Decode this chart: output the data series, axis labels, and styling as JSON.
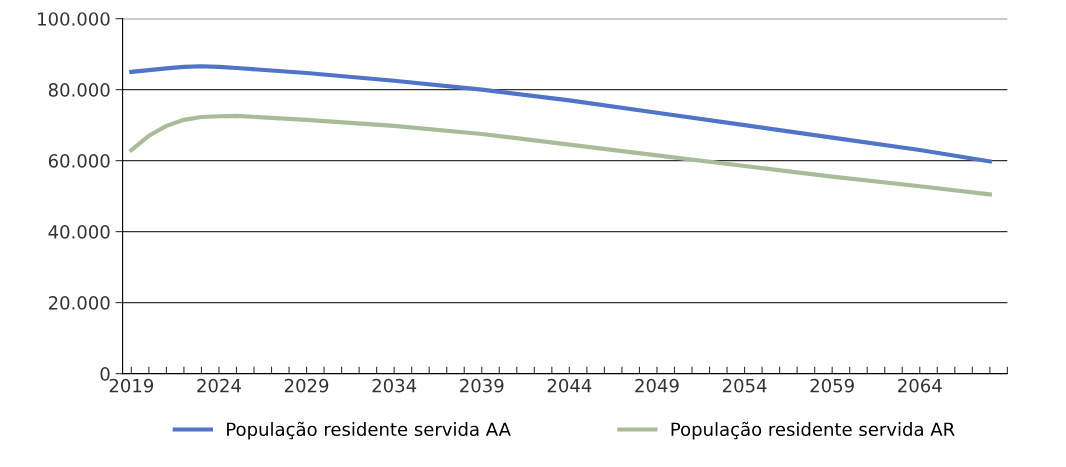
{
  "chart_data": {
    "type": "line",
    "x": [
      2019,
      2020,
      2021,
      2022,
      2023,
      2024,
      2025,
      2029,
      2034,
      2039,
      2044,
      2049,
      2054,
      2059,
      2064,
      2068
    ],
    "series": [
      {
        "name": "População residente servida AA",
        "color": "#4f74c8",
        "values": [
          85000,
          85500,
          86000,
          86400,
          86600,
          86400,
          86100,
          84700,
          82500,
          80000,
          77000,
          73500,
          70000,
          66500,
          63000,
          59800
        ]
      },
      {
        "name": "População residente servida AR",
        "color": "#a9bc9a",
        "values": [
          63000,
          67000,
          69800,
          71500,
          72300,
          72500,
          72600,
          71500,
          69800,
          67500,
          64500,
          61500,
          58500,
          55500,
          52800,
          50500
        ]
      }
    ],
    "xlim": [
      2018.5,
      2069
    ],
    "xticks": [
      2019,
      {
        "value": 2020,
        "label": null
      },
      {
        "value": 2021,
        "label": null
      },
      {
        "value": 2022,
        "label": null
      },
      {
        "value": 2023,
        "label": null
      },
      2024,
      {
        "value": 2025,
        "label": null
      },
      {
        "value": 2026,
        "label": null
      },
      {
        "value": 2027,
        "label": null
      },
      {
        "value": 2028,
        "label": null
      },
      2029,
      {
        "value": 2030,
        "label": null
      },
      {
        "value": 2031,
        "label": null
      },
      {
        "value": 2032,
        "label": null
      },
      {
        "value": 2033,
        "label": null
      },
      2034,
      {
        "value": 2035,
        "label": null
      },
      {
        "value": 2036,
        "label": null
      },
      {
        "value": 2037,
        "label": null
      },
      {
        "value": 2038,
        "label": null
      },
      2039,
      {
        "value": 2040,
        "label": null
      },
      {
        "value": 2041,
        "label": null
      },
      {
        "value": 2042,
        "label": null
      },
      {
        "value": 2043,
        "label": null
      },
      2044,
      {
        "value": 2045,
        "label": null
      },
      {
        "value": 2046,
        "label": null
      },
      {
        "value": 2047,
        "label": null
      },
      {
        "value": 2048,
        "label": null
      },
      2049,
      {
        "value": 2050,
        "label": null
      },
      {
        "value": 2051,
        "label": null
      },
      {
        "value": 2052,
        "label": null
      },
      {
        "value": 2053,
        "label": null
      },
      2054,
      {
        "value": 2055,
        "label": null
      },
      {
        "value": 2056,
        "label": null
      },
      {
        "value": 2057,
        "label": null
      },
      {
        "value": 2058,
        "label": null
      },
      2059,
      {
        "value": 2060,
        "label": null
      },
      {
        "value": 2061,
        "label": null
      },
      {
        "value": 2062,
        "label": null
      },
      {
        "value": 2063,
        "label": null
      },
      2064,
      {
        "value": 2065,
        "label": null
      },
      {
        "value": 2066,
        "label": null
      },
      {
        "value": 2067,
        "label": null
      },
      {
        "value": 2068,
        "label": null
      },
      {
        "value": 2069,
        "label": null
      }
    ],
    "ylim": [
      0,
      100000
    ],
    "yticks": [
      {
        "value": 0,
        "label": "0"
      },
      {
        "value": 20000,
        "label": "20.000"
      },
      {
        "value": 40000,
        "label": "40.000"
      },
      {
        "value": 60000,
        "label": "60.000"
      },
      {
        "value": 80000,
        "label": "80.000"
      },
      {
        "value": 100000,
        "label": "100.000"
      }
    ],
    "grid": "y",
    "legend": "bottom",
    "marker": "none",
    "line_style": "solid"
  }
}
